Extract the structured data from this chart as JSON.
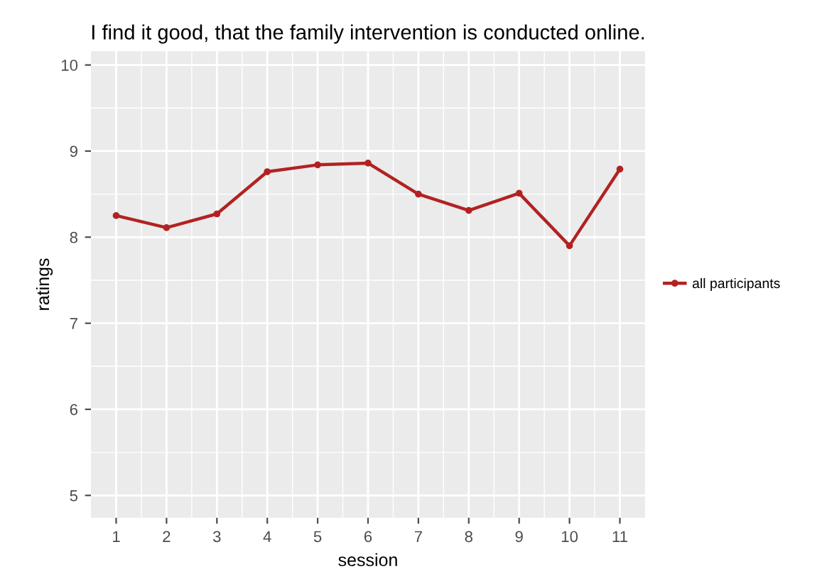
{
  "chart_data": {
    "type": "line",
    "title": "I find it good, that the family intervention is conducted online.",
    "xlabel": "session",
    "ylabel": "ratings",
    "x": [
      1,
      2,
      3,
      4,
      5,
      6,
      7,
      8,
      9,
      10,
      11
    ],
    "series": [
      {
        "name": "all participants",
        "color": "#b22222",
        "values": [
          8.25,
          8.11,
          8.27,
          8.76,
          8.84,
          8.86,
          8.5,
          8.31,
          8.51,
          7.9,
          8.79
        ]
      }
    ],
    "xlim": [
      0.5,
      11.5
    ],
    "xticks": [
      1,
      2,
      3,
      4,
      5,
      6,
      7,
      8,
      9,
      10,
      11
    ],
    "ylim": [
      4.74,
      10.16
    ],
    "yticks": [
      5,
      6,
      7,
      8,
      9,
      10
    ],
    "grid": true,
    "legend": "right",
    "marker": "circle",
    "line_style": "solid"
  }
}
